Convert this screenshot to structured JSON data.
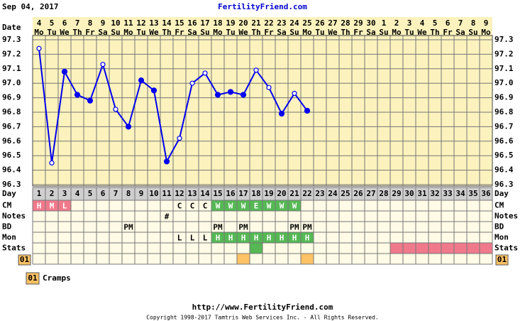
{
  "header": {
    "date": "Sep 04, 2017",
    "site": "FertilityFriend.com"
  },
  "chart_data": {
    "type": "line",
    "dates": [
      4,
      5,
      6,
      7,
      8,
      9,
      10,
      11,
      12,
      13,
      14,
      15,
      16,
      17,
      18,
      19,
      20,
      21,
      22,
      23,
      24,
      25,
      26,
      27,
      28,
      29,
      30,
      1,
      2,
      3,
      4,
      5,
      6,
      7,
      8,
      9
    ],
    "weekdays": [
      "Mo",
      "Tu",
      "We",
      "Th",
      "Fr",
      "Sa",
      "Su",
      "Mo",
      "Tu",
      "We",
      "Th",
      "Fr",
      "Sa",
      "Su",
      "Mo",
      "Tu",
      "We",
      "Th",
      "Fr",
      "Sa",
      "Su",
      "Mo",
      "Tu",
      "We",
      "Th",
      "Fr",
      "Sa",
      "Su",
      "Mo",
      "Tu",
      "We",
      "Th",
      "Fr",
      "Sa",
      "Su",
      "Mo"
    ],
    "categories": [
      1,
      2,
      3,
      4,
      5,
      6,
      7,
      8,
      9,
      10,
      11,
      12,
      13,
      14,
      15,
      16,
      17,
      18,
      19,
      20,
      21,
      22,
      23,
      24,
      25,
      26,
      27,
      28,
      29,
      30,
      31,
      32,
      33,
      34,
      35,
      36
    ],
    "series": [
      {
        "color": "#0000ee",
        "values": [
          97.24,
          96.45,
          97.08,
          96.92,
          96.88,
          97.13,
          96.82,
          96.7,
          97.02,
          96.95,
          96.46,
          96.62,
          97.0,
          97.07,
          96.92,
          96.94,
          96.92,
          97.09,
          96.97,
          96.79,
          96.93,
          96.81,
          null,
          null,
          null,
          null,
          null,
          null,
          null,
          null,
          null,
          null,
          null,
          null,
          null,
          null
        ],
        "marker_open": [
          true,
          true,
          false,
          false,
          false,
          true,
          true,
          false,
          false,
          false,
          false,
          true,
          true,
          true,
          false,
          false,
          false,
          true,
          true,
          false,
          true,
          false,
          null,
          null,
          null,
          null,
          null,
          null,
          null,
          null,
          null,
          null,
          null,
          null,
          null,
          null
        ]
      }
    ],
    "ylim": [
      96.3,
      97.3
    ],
    "yticks": [
      96.3,
      96.4,
      96.5,
      96.6,
      96.7,
      96.8,
      96.9,
      {
        "value": 97,
        "label": "97.0"
      },
      97.1,
      97.2,
      97.3
    ],
    "grid": true,
    "row_labels": {
      "date": "Date",
      "day": "Day",
      "cm": "CM",
      "notes": "Notes",
      "bd": "BD",
      "mon": "Mon",
      "stats": "Stats"
    },
    "rows": {
      "cm": {
        "labels": [
          "H",
          "M",
          "L",
          null,
          null,
          null,
          null,
          null,
          null,
          null,
          null,
          "C",
          "C",
          "C",
          "W",
          "W",
          "W",
          "E",
          "W",
          "W",
          "W",
          null,
          null,
          null,
          null,
          null,
          null,
          null,
          null,
          null,
          null,
          null,
          null,
          null,
          null,
          null
        ],
        "colors": [
          "#f07a8c",
          "#f07a8c",
          "#f07a8c",
          null,
          null,
          null,
          null,
          null,
          null,
          null,
          null,
          null,
          null,
          null,
          "#55b855",
          "#55b855",
          "#55b855",
          "#55b855",
          "#55b855",
          "#55b855",
          "#55b855",
          null,
          null,
          null,
          null,
          null,
          null,
          null,
          null,
          null,
          null,
          null,
          null,
          null,
          null,
          null
        ]
      },
      "notes": {
        "labels": [
          null,
          null,
          null,
          null,
          null,
          null,
          null,
          null,
          null,
          null,
          "#",
          null,
          null,
          null,
          null,
          null,
          null,
          null,
          null,
          null,
          null,
          null,
          null,
          null,
          null,
          null,
          null,
          null,
          null,
          null,
          null,
          null,
          null,
          null,
          null,
          null
        ]
      },
      "bd": {
        "labels": [
          null,
          null,
          null,
          null,
          null,
          null,
          null,
          "PM",
          null,
          null,
          null,
          null,
          null,
          null,
          "PM",
          null,
          "PM",
          null,
          null,
          null,
          "PM",
          "PM",
          null,
          null,
          null,
          null,
          null,
          null,
          null,
          null,
          null,
          null,
          null,
          null,
          null,
          null
        ]
      },
      "mon": {
        "labels": [
          null,
          null,
          null,
          null,
          null,
          null,
          null,
          null,
          null,
          null,
          null,
          "L",
          "L",
          "L",
          "H",
          "H",
          "H",
          "H",
          "H",
          "H",
          "H",
          "H",
          null,
          null,
          null,
          null,
          null,
          null,
          null,
          null,
          null,
          null,
          null,
          null,
          null,
          null
        ],
        "colors": [
          null,
          null,
          null,
          null,
          null,
          null,
          null,
          null,
          null,
          null,
          null,
          null,
          null,
          null,
          "#55b855",
          "#55b855",
          "#55b855",
          "#55b855",
          "#55b855",
          "#55b855",
          "#55b855",
          "#55b855",
          null,
          null,
          null,
          null,
          null,
          null,
          null,
          null,
          null,
          null,
          null,
          null,
          null,
          null
        ]
      },
      "stats": {
        "colors": [
          null,
          null,
          null,
          null,
          null,
          null,
          null,
          null,
          null,
          null,
          null,
          null,
          null,
          null,
          null,
          null,
          null,
          "#55b855",
          null,
          null,
          null,
          null,
          null,
          null,
          null,
          null,
          null,
          null,
          "#f07a8c",
          "#f07a8c",
          "#f07a8c",
          "#f07a8c",
          "#f07a8c",
          "#f07a8c",
          "#f07a8c",
          "#f07a8c"
        ]
      },
      "symptom": {
        "code": "01",
        "colors": [
          null,
          null,
          null,
          null,
          null,
          null,
          null,
          null,
          null,
          null,
          null,
          null,
          null,
          null,
          null,
          null,
          "#ffc265",
          null,
          null,
          null,
          null,
          "#ffc265",
          null,
          null,
          null,
          null,
          null,
          null,
          null,
          null,
          null,
          null,
          null,
          null,
          null,
          null
        ]
      }
    }
  },
  "legend": {
    "code": "01",
    "label": "Cramps"
  },
  "footer": {
    "url": "http://www.FertilityFriend.com",
    "copyright": "Copyright 1998-2017 Tamtris Web Services Inc. - All Rights Reserved."
  }
}
